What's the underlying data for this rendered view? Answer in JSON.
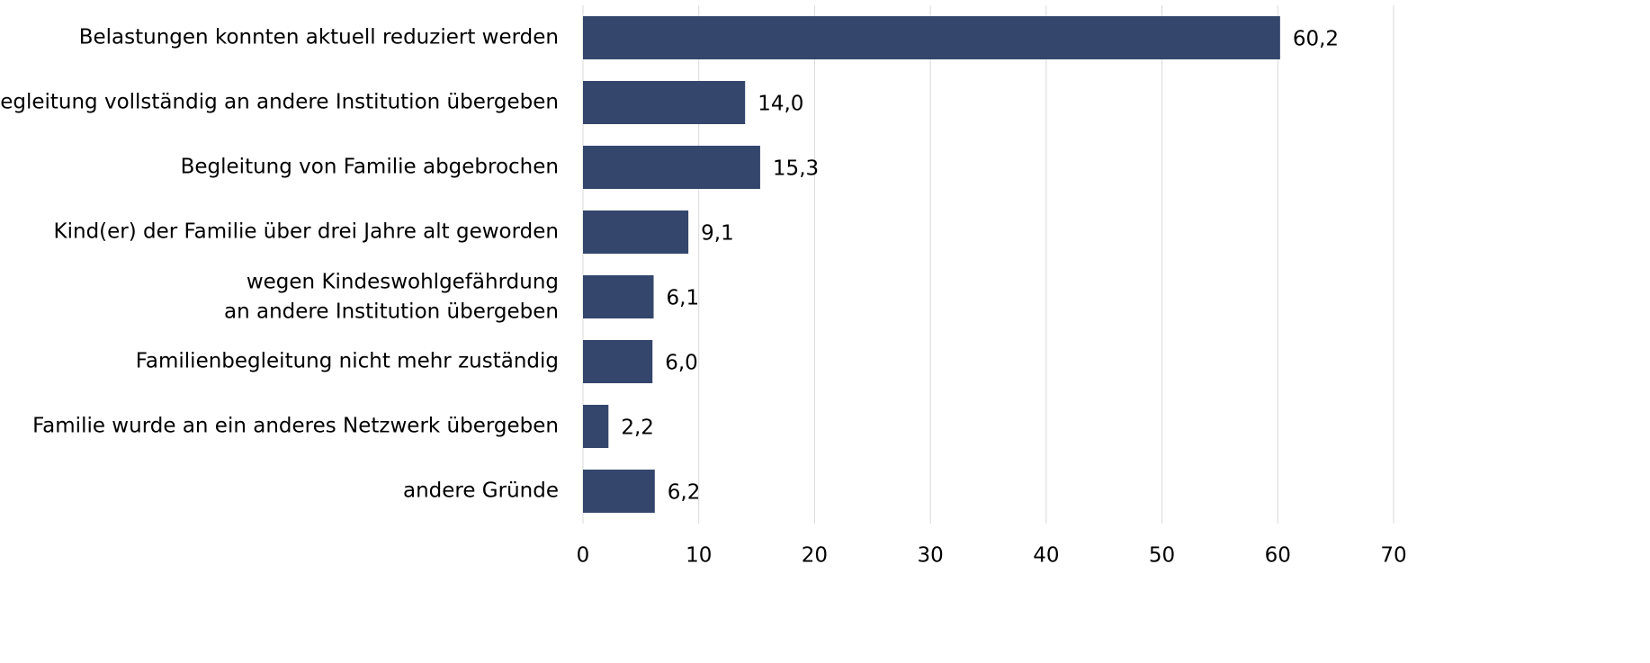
{
  "chart_data": {
    "type": "bar",
    "orientation": "horizontal",
    "categories": [
      "Belastungen konnten aktuell reduziert werden",
      "Begleitung vollständig an andere Institution übergeben",
      "Begleitung von Familie abgebrochen",
      "Kind(er) der Familie über drei Jahre alt geworden",
      "wegen Kindeswohlgefährdung\nan andere Institution übergeben",
      "Familienbegleitung nicht mehr zuständig",
      "Familie wurde an ein anderes Netzwerk übergeben",
      "andere Gründe"
    ],
    "values": [
      60.2,
      14.0,
      15.3,
      9.1,
      6.1,
      6.0,
      2.2,
      6.2
    ],
    "value_labels": [
      "60,2",
      "14,0",
      "15,3",
      "9,1",
      "6,1",
      "6,0",
      "2,2",
      "6,2"
    ],
    "color": "#34466b",
    "xlim": [
      0,
      70
    ],
    "xticks": [
      0,
      10,
      20,
      30,
      40,
      50,
      60,
      70
    ],
    "grid": true
  }
}
